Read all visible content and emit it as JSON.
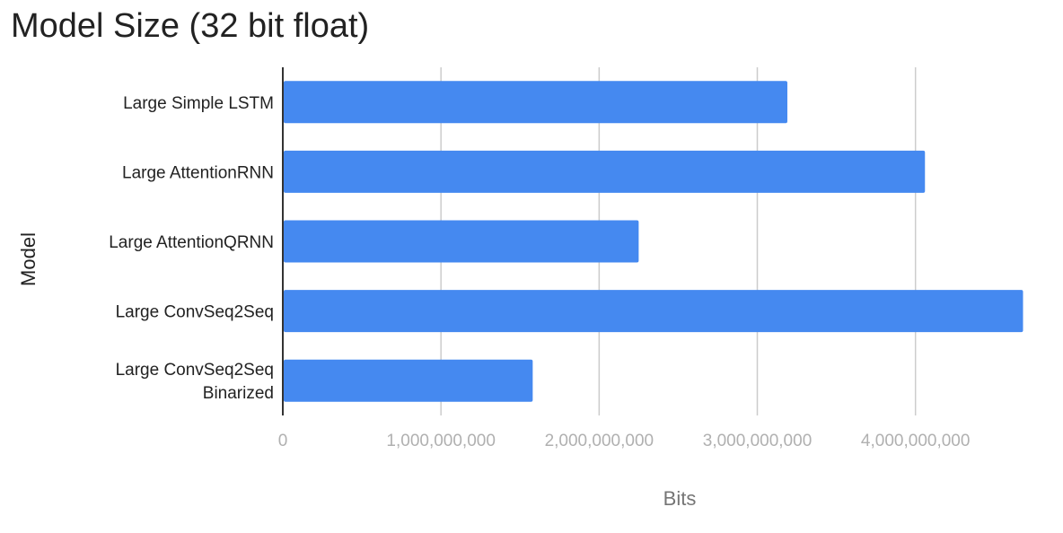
{
  "chart_data": {
    "type": "bar",
    "orientation": "horizontal",
    "title": "Model Size (32 bit float)",
    "xlabel": "Bits",
    "ylabel": "Model",
    "categories": [
      [
        "Large Simple LSTM"
      ],
      [
        "Large AttentionRNN"
      ],
      [
        "Large AttentionQRNN"
      ],
      [
        "Large ConvSeq2Seq"
      ],
      [
        "Large ConvSeq2Seq",
        "Binarized"
      ]
    ],
    "values": [
      3190000000,
      4060000000,
      2250000000,
      4680000000,
      1580000000
    ],
    "xlim": [
      0,
      4700000000
    ],
    "xticks": [
      0,
      1000000000,
      2000000000,
      3000000000,
      4000000000
    ],
    "xtick_labels": [
      "0",
      "1,000,000,000",
      "2,000,000,000",
      "3,000,000,000",
      "4,000,000,000"
    ],
    "grid": true,
    "bar_color": "#4589f0",
    "grid_color": "#cccccc",
    "axis_color": "#333333"
  }
}
